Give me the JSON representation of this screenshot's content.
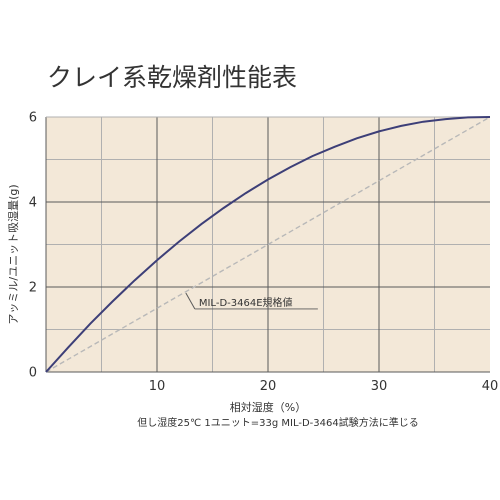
{
  "colors": {
    "plot_background": "#f3e8d8",
    "curve": "#3d3f78",
    "reference_line": "#b8b8b8",
    "grid_major": "#5a5a5a",
    "grid_minor": "#b0b0b0",
    "text": "#333333"
  },
  "chart_data": {
    "type": "line",
    "title": "クレイ系乾燥剤性能表",
    "xlabel": "相対湿度（%）",
    "ylabel": "アッミル/ユニット吸湿量(g)",
    "footnote": "但し湿度25℃ 1ユニット=33g MIL-D-3464試験方法に準じる",
    "xlim": [
      0,
      40
    ],
    "ylim": [
      0,
      6
    ],
    "x_ticks": [
      10,
      20,
      30,
      40
    ],
    "y_ticks": [
      0,
      2,
      4,
      6
    ],
    "grid": true,
    "series": [
      {
        "x": [
          0,
          2,
          4,
          6,
          8,
          10,
          12,
          14,
          16,
          18,
          20,
          22,
          24,
          26,
          28,
          30,
          32,
          34,
          36,
          38,
          40
        ],
        "y": [
          0,
          0.58,
          1.14,
          1.66,
          2.16,
          2.63,
          3.07,
          3.48,
          3.86,
          4.21,
          4.53,
          4.82,
          5.08,
          5.3,
          5.5,
          5.66,
          5.79,
          5.89,
          5.95,
          5.99,
          6.0
        ],
        "style": "solid"
      },
      {
        "name": "MIL-D-3464E規格値",
        "x": [
          0,
          40
        ],
        "y": [
          0,
          6
        ],
        "style": "dashed"
      }
    ]
  }
}
